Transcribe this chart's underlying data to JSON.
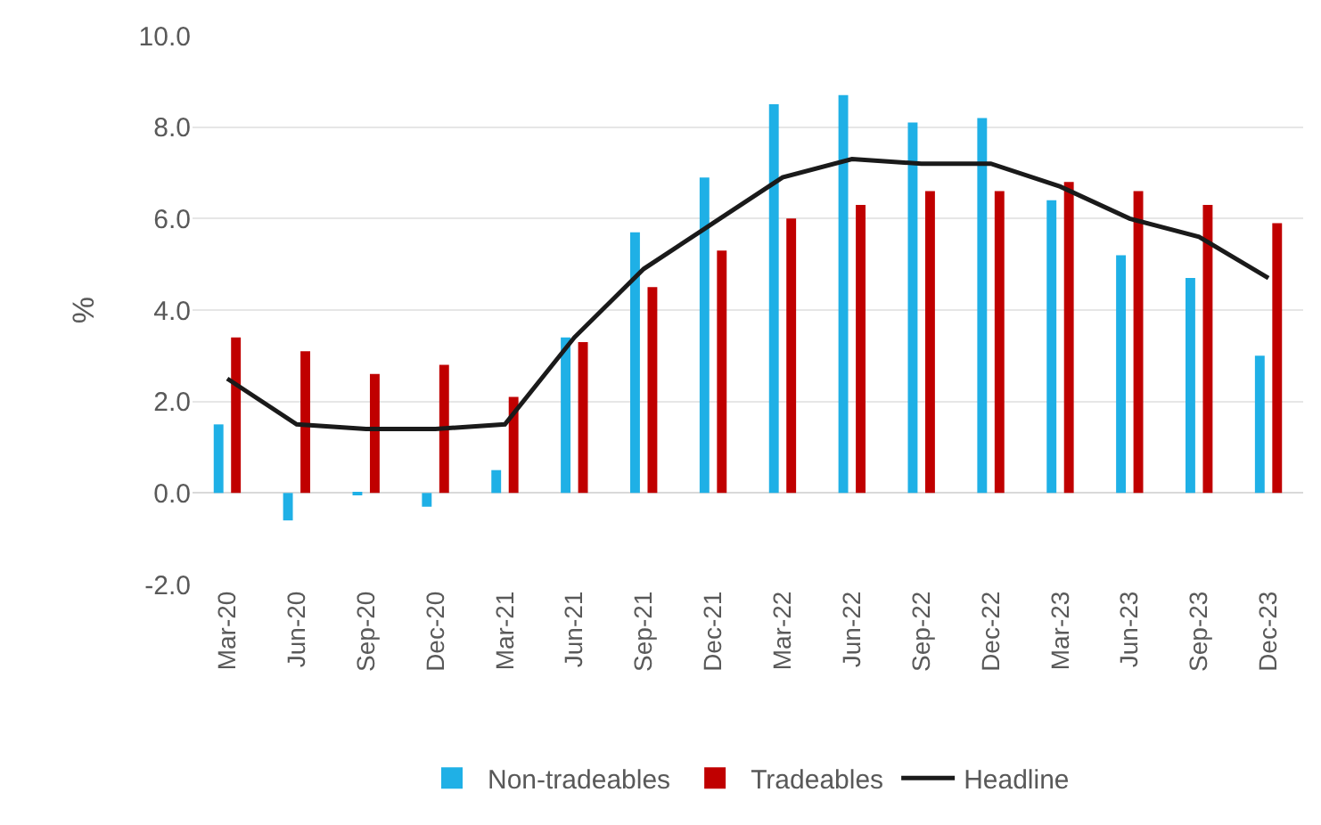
{
  "chart_data": {
    "type": "bar",
    "ylabel": "%",
    "categories": [
      "Mar-20",
      "Jun-20",
      "Sep-20",
      "Dec-20",
      "Mar-21",
      "Jun-21",
      "Sep-21",
      "Dec-21",
      "Mar-22",
      "Jun-22",
      "Sep-22",
      "Dec-22",
      "Mar-23",
      "Jun-23",
      "Sep-23",
      "Dec-23"
    ],
    "series": [
      {
        "name": "Non-tradeables",
        "color": "#1fb0e6",
        "values": [
          1.5,
          -0.6,
          -0.05,
          -0.3,
          0.5,
          3.4,
          5.7,
          6.9,
          8.5,
          8.7,
          8.1,
          8.2,
          6.4,
          5.2,
          4.7,
          3.0
        ]
      },
      {
        "name": "Tradeables",
        "color": "#c00000",
        "values": [
          3.4,
          3.1,
          2.6,
          2.8,
          2.1,
          3.3,
          4.5,
          5.3,
          6.0,
          6.3,
          6.6,
          6.6,
          6.8,
          6.6,
          6.3,
          5.9
        ]
      },
      {
        "name": "Headline",
        "type": "line",
        "color": "#1a1a1a",
        "values": [
          2.5,
          1.5,
          1.4,
          1.4,
          1.5,
          3.4,
          4.9,
          5.9,
          6.9,
          7.3,
          7.2,
          7.2,
          6.7,
          6.0,
          5.6,
          4.7
        ]
      }
    ],
    "ylim": [
      -2,
      10
    ],
    "yticks": [
      {
        "value": -2,
        "label": "-2.0"
      },
      {
        "value": 0,
        "label": "0.0"
      },
      {
        "value": 2,
        "label": "2.0"
      },
      {
        "value": 4,
        "label": "4.0"
      },
      {
        "value": 6,
        "label": "6.0"
      },
      {
        "value": 8,
        "label": "8.0"
      },
      {
        "value": 10,
        "label": "10.0"
      }
    ],
    "grid": "y",
    "legend": "bottom",
    "marker": "none",
    "line_style": "solid"
  }
}
